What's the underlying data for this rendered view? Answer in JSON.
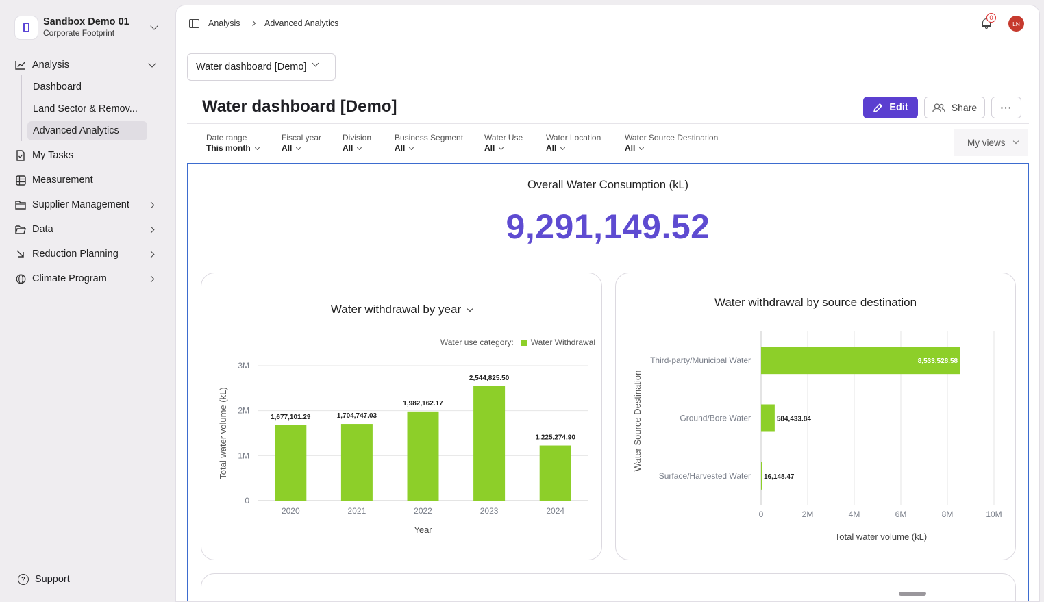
{
  "org": {
    "name": "Sandbox Demo 01",
    "subtitle": "Corporate Footprint"
  },
  "nav": {
    "analysis": "Analysis",
    "sub": [
      "Dashboard",
      "Land Sector & Remov...",
      "Advanced Analytics"
    ],
    "tasks": "My Tasks",
    "measurement": "Measurement",
    "supplier": "Supplier Management",
    "data": "Data",
    "reduction": "Reduction Planning",
    "climate": "Climate Program",
    "support": "Support"
  },
  "breadcrumb": [
    "Analysis",
    "Advanced Analytics"
  ],
  "notifications": {
    "count": "0"
  },
  "user": {
    "initials": "LN"
  },
  "dashboard_select": "Water dashboard [Demo]",
  "page_title": "Water dashboard [Demo]",
  "actions": {
    "edit": "Edit",
    "share": "Share",
    "more": "···"
  },
  "filters": [
    {
      "label": "Date range",
      "value": "This month"
    },
    {
      "label": "Fiscal year",
      "value": "All"
    },
    {
      "label": "Division",
      "value": "All"
    },
    {
      "label": "Business Segment",
      "value": "All"
    },
    {
      "label": "Water Use",
      "value": "All"
    },
    {
      "label": "Water Location",
      "value": "All"
    },
    {
      "label": "Water Source Destination",
      "value": "All"
    }
  ],
  "my_views": "My views",
  "kpi": {
    "label": "Overall Water Consumption (kL)",
    "value": "9,291,149.52"
  },
  "colors": {
    "accent": "#5b3fd0",
    "kpi": "#5e4bd1",
    "bar": "#8dcf29"
  },
  "chart_data": [
    {
      "type": "bar",
      "title": "Water withdrawal by year",
      "legend_title": "Water use category:",
      "series": [
        {
          "name": "Water Withdrawal",
          "values": [
            1677101.29,
            1704747.03,
            1982162.17,
            2544825.5,
            1225274.9
          ]
        }
      ],
      "categories": [
        "2020",
        "2021",
        "2022",
        "2023",
        "2024"
      ],
      "data_labels": [
        "1,677,101.29",
        "1,704,747.03",
        "1,982,162.17",
        "2,544,825.50",
        "1,225,274.90"
      ],
      "xlabel": "Year",
      "ylabel": "Total water volume (kL)",
      "ylim": [
        0,
        3000000
      ],
      "yticks": [
        0,
        1000000,
        2000000,
        3000000
      ],
      "ytick_labels": [
        "0",
        "1M",
        "2M",
        "3M"
      ],
      "grid": true,
      "legend_position": "top-right"
    },
    {
      "type": "bar",
      "orientation": "horizontal",
      "title": "Water withdrawal by source destination",
      "categories": [
        "Third-party/Municipal Water",
        "Ground/Bore Water",
        "Surface/Harvested Water"
      ],
      "values": [
        8533528.58,
        584433.84,
        16148.47
      ],
      "data_labels": [
        "8,533,528.58",
        "584,433.84",
        "16,148.47"
      ],
      "xlabel": "Total water volume (kL)",
      "ylabel": "Water Source Destination",
      "xlim": [
        0,
        10000000
      ],
      "xticks": [
        0,
        2000000,
        4000000,
        6000000,
        8000000,
        10000000
      ],
      "xtick_labels": [
        "0",
        "2M",
        "4M",
        "6M",
        "8M",
        "10M"
      ],
      "grid": true
    }
  ]
}
